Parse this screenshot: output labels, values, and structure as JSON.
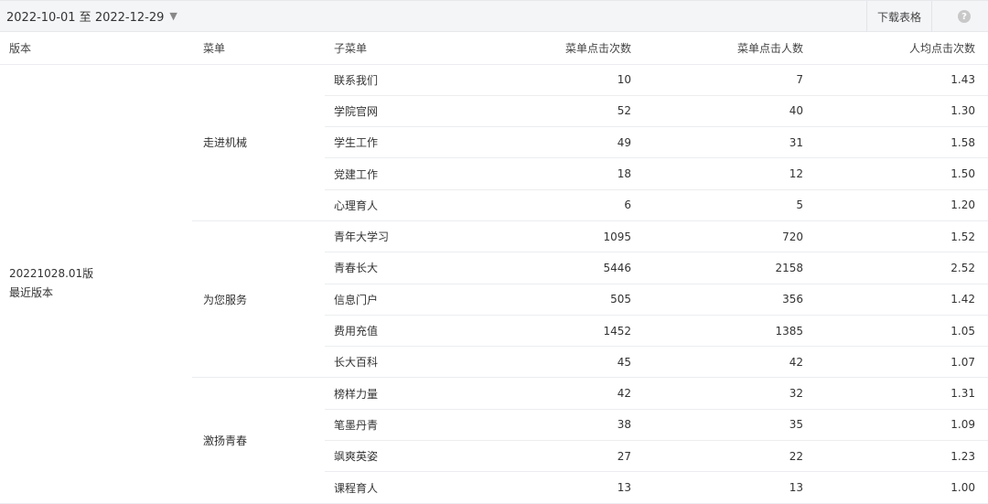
{
  "toolbar": {
    "date_range": "2022-10-01 至 2022-12-29",
    "download_label": "下载表格",
    "help_icon": "question-circle-icon"
  },
  "table": {
    "headers": [
      "版本",
      "菜单",
      "子菜单",
      "菜单点击次数",
      "菜单点击人数",
      "人均点击次数"
    ],
    "version": {
      "name": "20221028.01版",
      "note": "最近版本"
    },
    "groups": [
      {
        "menu": "走进机械",
        "rows": [
          [
            "联系我们",
            "10",
            "7",
            "1.43"
          ],
          [
            "学院官网",
            "52",
            "40",
            "1.30"
          ],
          [
            "学生工作",
            "49",
            "31",
            "1.58"
          ],
          [
            "党建工作",
            "18",
            "12",
            "1.50"
          ],
          [
            "心理育人",
            "6",
            "5",
            "1.20"
          ]
        ]
      },
      {
        "menu": "为您服务",
        "rows": [
          [
            "青年大学习",
            "1095",
            "720",
            "1.52"
          ],
          [
            "青春长大",
            "5446",
            "2158",
            "2.52"
          ],
          [
            "信息门户",
            "505",
            "356",
            "1.42"
          ],
          [
            "费用充值",
            "1452",
            "1385",
            "1.05"
          ],
          [
            "长大百科",
            "45",
            "42",
            "1.07"
          ]
        ]
      },
      {
        "menu": "激扬青春",
        "rows": [
          [
            "榜样力量",
            "42",
            "32",
            "1.31"
          ],
          [
            "笔墨丹青",
            "38",
            "35",
            "1.09"
          ],
          [
            "飒爽英姿",
            "27",
            "22",
            "1.23"
          ],
          [
            "课程育人",
            "13",
            "13",
            "1.00"
          ]
        ]
      }
    ]
  }
}
